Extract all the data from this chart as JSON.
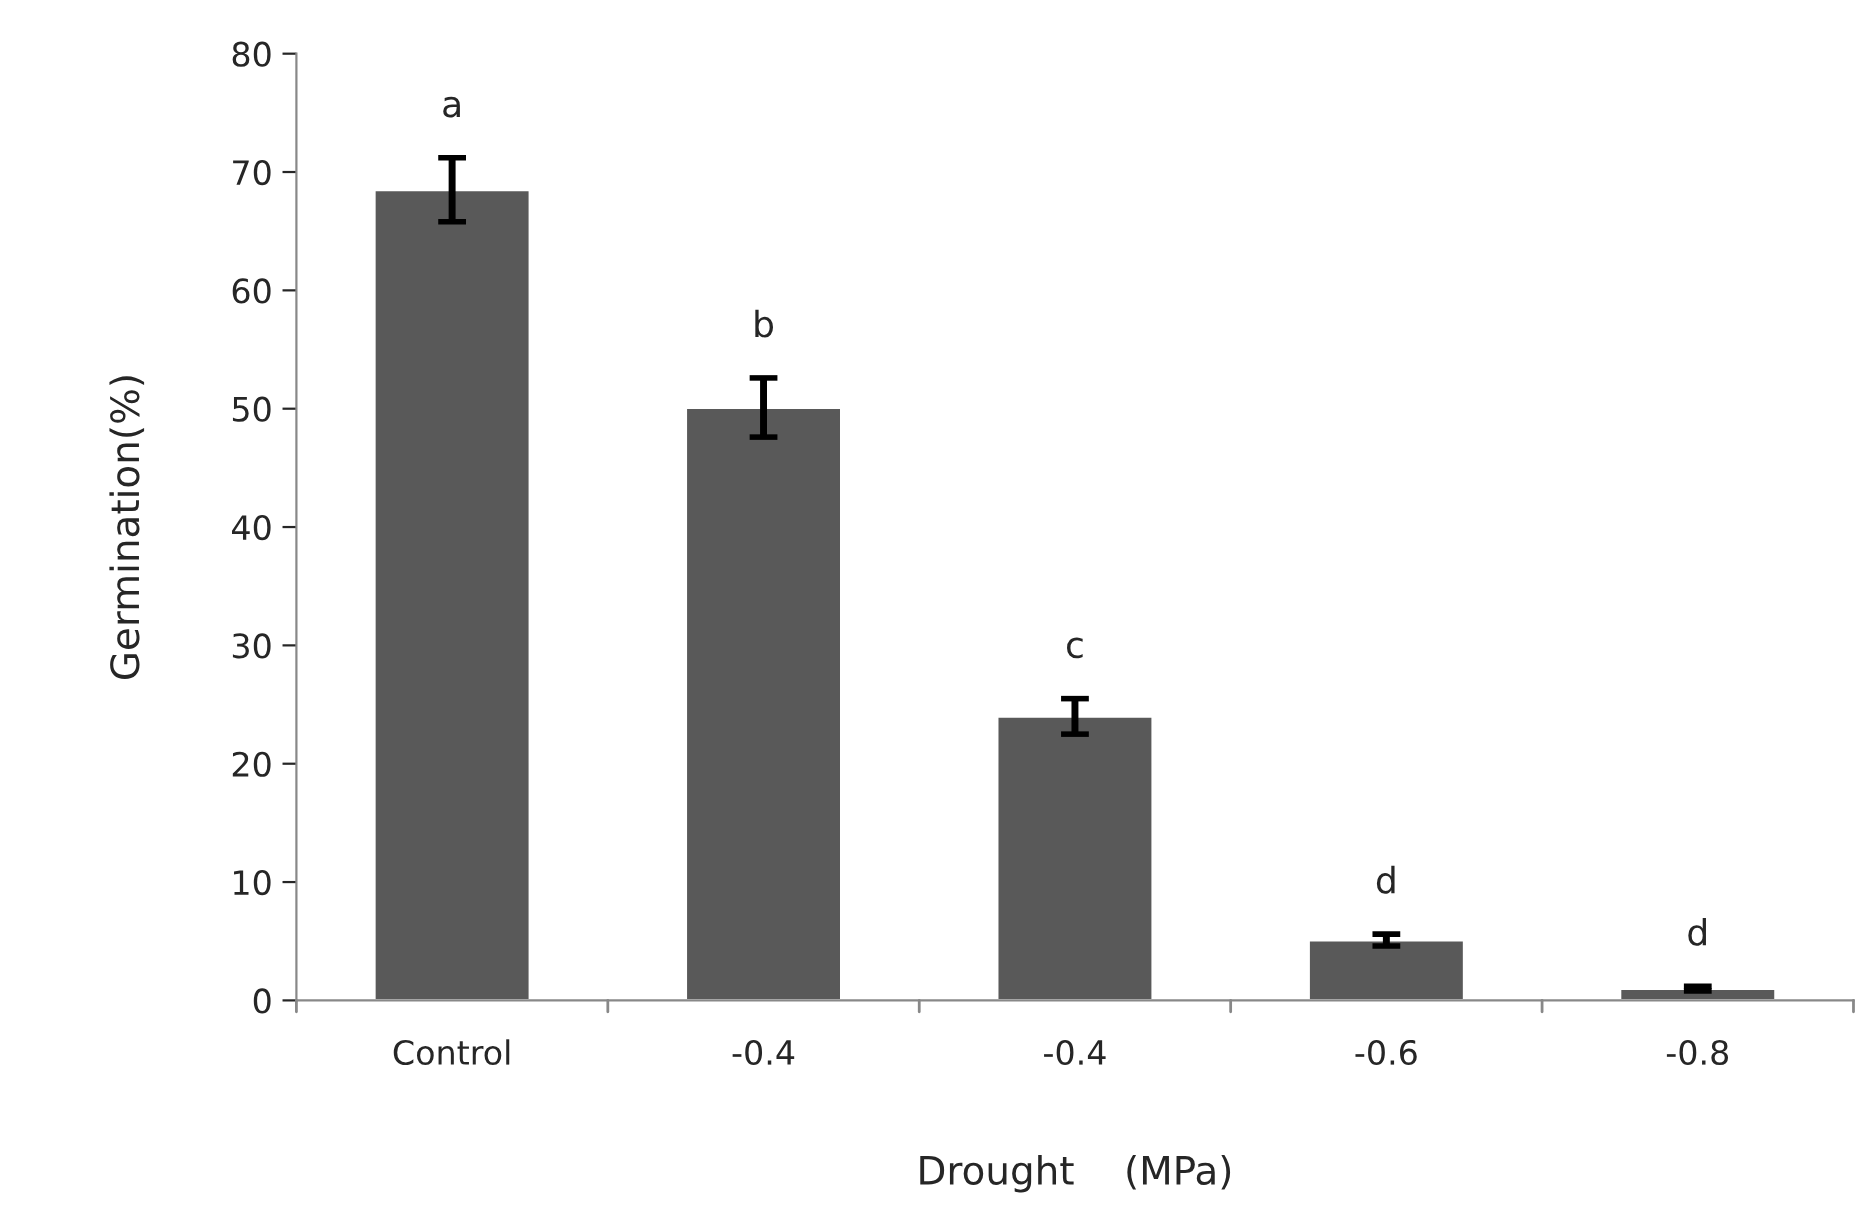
{
  "chart_data": {
    "type": "bar",
    "xlabel": "Drought    (MPa)",
    "ylabel": "Germination(%)",
    "categories": [
      "Control",
      "-0.4",
      "-0.4",
      "-0.6",
      "-0.8"
    ],
    "values": [
      68.5,
      50.1,
      24.0,
      5.1,
      1.0
    ],
    "errors": [
      2.7,
      2.5,
      1.5,
      0.5,
      0.2
    ],
    "color": "#595959",
    "ylim": [
      0,
      80
    ],
    "yticks": [
      0,
      10,
      20,
      30,
      40,
      50,
      60,
      70,
      80
    ],
    "grid": false,
    "annotations": [
      "a",
      "b",
      "c",
      "d",
      "d"
    ]
  }
}
